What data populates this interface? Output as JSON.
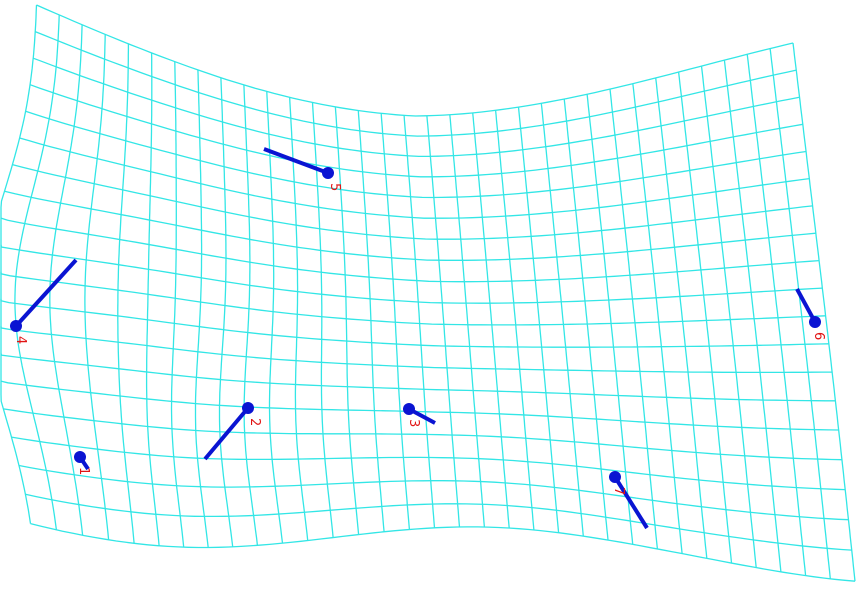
{
  "colors": {
    "background": "#ffffff",
    "grid": "#33e6e6",
    "vector": "#0a14d2",
    "label": "#e11414"
  },
  "landmarks": [
    {
      "id": 1,
      "label": "1"
    },
    {
      "id": 2,
      "label": "2"
    },
    {
      "id": 3,
      "label": "3"
    },
    {
      "id": 4,
      "label": "4"
    },
    {
      "id": 5,
      "label": "5"
    },
    {
      "id": 6,
      "label": "6"
    },
    {
      "id": 7,
      "label": "7"
    }
  ]
}
